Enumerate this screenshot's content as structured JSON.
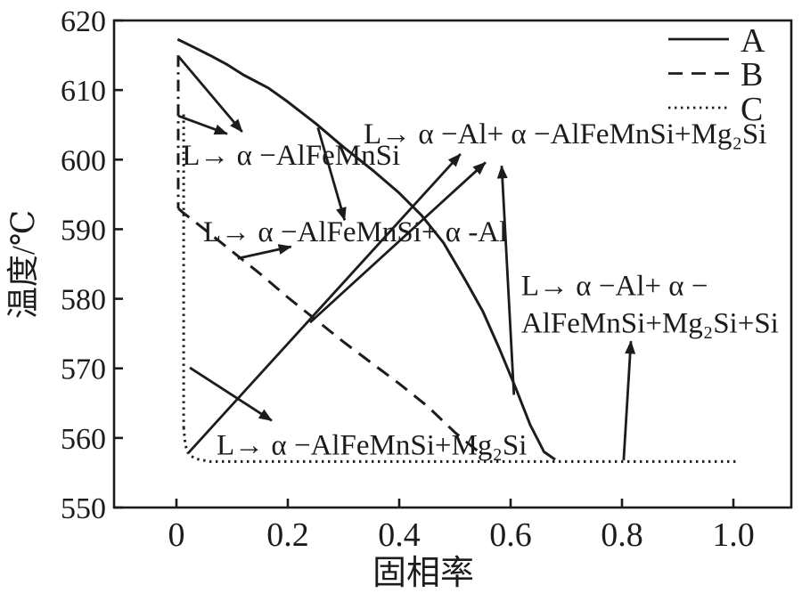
{
  "chart_data": {
    "type": "line",
    "title": "",
    "xlabel": "固相率",
    "ylabel": "温度/℃",
    "xlim": [
      -0.112,
      1.104
    ],
    "ylim": [
      550,
      620
    ],
    "grid": false,
    "ink_color": "#1c1c1c",
    "background_color": "#ffffff",
    "xticks": [
      {
        "v": 0.0,
        "label": "0"
      },
      {
        "v": 0.2,
        "label": "0.2"
      },
      {
        "v": 0.4,
        "label": "0.4"
      },
      {
        "v": 0.6,
        "label": "0.6"
      },
      {
        "v": 0.8,
        "label": "0.8"
      },
      {
        "v": 1.0,
        "label": "1.0"
      }
    ],
    "yticks": [
      {
        "v": 550,
        "label": "550"
      },
      {
        "v": 560,
        "label": "560"
      },
      {
        "v": 570,
        "label": "570"
      },
      {
        "v": 580,
        "label": "580"
      },
      {
        "v": 590,
        "label": "590"
      },
      {
        "v": 600,
        "label": "600"
      },
      {
        "v": 610,
        "label": "610"
      },
      {
        "v": 620,
        "label": "620"
      }
    ],
    "legend": {
      "position": "top-right",
      "entries": [
        {
          "label": "A",
          "style": "solid"
        },
        {
          "label": "B",
          "style": "dashed"
        },
        {
          "label": "C",
          "style": "dotted"
        }
      ]
    },
    "series": [
      {
        "name": "A",
        "style": "solid",
        "segments": [
          {
            "points": [
              [
                0.002,
                617.3
              ],
              [
                0.03,
                616.2
              ],
              [
                0.06,
                615.0
              ],
              [
                0.09,
                613.7
              ],
              [
                0.12,
                612.2
              ],
              [
                0.165,
                610.3
              ],
              [
                0.2,
                608.3
              ],
              [
                0.25,
                605.2
              ],
              [
                0.3,
                601.8
              ],
              [
                0.355,
                598.3
              ],
              [
                0.4,
                595.2
              ],
              [
                0.44,
                592.0
              ],
              [
                0.48,
                588.0
              ],
              [
                0.52,
                582.5
              ],
              [
                0.55,
                578.2
              ],
              [
                0.58,
                572.8
              ],
              [
                0.61,
                567.0
              ],
              [
                0.635,
                561.9
              ],
              [
                0.66,
                558.0
              ],
              [
                0.68,
                556.9
              ]
            ]
          }
        ]
      },
      {
        "name": "B",
        "style": "dashed",
        "segments": [
          {
            "style": "dashdot",
            "points": [
              [
                0.0032,
                615.0
              ],
              [
                0.0032,
                593.0
              ]
            ]
          },
          {
            "points": [
              [
                0.0032,
                593.0
              ],
              [
                0.01,
                592.5
              ],
              [
                0.05,
                590.0
              ],
              [
                0.1,
                586.8
              ],
              [
                0.15,
                583.6
              ],
              [
                0.2,
                580.2
              ],
              [
                0.25,
                577.0
              ],
              [
                0.3,
                573.8
              ],
              [
                0.35,
                570.8
              ],
              [
                0.4,
                567.8
              ],
              [
                0.45,
                564.6
              ],
              [
                0.5,
                560.8
              ],
              [
                0.53,
                558.8
              ],
              [
                0.55,
                557.6
              ]
            ]
          }
        ]
      },
      {
        "name": "C",
        "style": "dotted",
        "segments": [
          {
            "points": [
              [
                0.013,
                606.5
              ],
              [
                0.013,
                561.5
              ]
            ]
          },
          {
            "points": [
              [
                0.013,
                561.5
              ],
              [
                0.016,
                559.0
              ],
              [
                0.022,
                557.6
              ],
              [
                0.035,
                557.0
              ],
              [
                0.06,
                556.6
              ],
              [
                1.005,
                556.6
              ]
            ]
          }
        ]
      }
    ],
    "annotations": [
      {
        "id": "reaction-alfemnsi",
        "x": 0.01,
        "y": 602.7,
        "lines": [
          "L→ α −AlFeMnSi"
        ]
      },
      {
        "id": "reaction-alfemnsi-al",
        "x": 0.048,
        "y": 591.7,
        "lines": [
          "L→ α −AlFeMnSi+ α -Al"
        ]
      },
      {
        "id": "reaction-al-alfemnsi-mg2si",
        "x": 0.336,
        "y": 605.8,
        "lines": [
          "L→ α −Al+ α −AlFeMnSi+Mg₂Si"
        ]
      },
      {
        "id": "reaction-al-alfemnsi-mg2si-si",
        "x": 0.619,
        "y": 584.0,
        "lines": [
          "L→ α −Al+ α −",
          "AlFeMnSi+Mg₂Si+Si"
        ]
      },
      {
        "id": "reaction-alfemnsi-mg2si",
        "x": 0.072,
        "y": 561.1,
        "lines": [
          "L→ α −AlFeMnSi+Mg₂Si"
        ]
      }
    ],
    "arrows": [
      {
        "id": "arrow-to-reaction1-from-B-start",
        "from": [
          0.003,
          614.9
        ],
        "to": [
          0.118,
          604.0
        ]
      },
      {
        "id": "arrow-to-reaction1-from-C-start",
        "from": [
          0.003,
          606.3
        ],
        "to": [
          0.091,
          603.7
        ]
      },
      {
        "id": "arrow-to-reaction2-from-A",
        "from": [
          0.254,
          604.6
        ],
        "to": [
          0.302,
          591.3
        ]
      },
      {
        "id": "arrow-to-reaction2-from-B",
        "from": [
          0.11,
          585.8
        ],
        "to": [
          0.206,
          587.5
        ]
      },
      {
        "id": "arrow-to-reaction5",
        "from": [
          0.024,
          570.1
        ],
        "to": [
          0.171,
          562.5
        ]
      },
      {
        "id": "arrow-to-reaction3-from-C",
        "from": [
          0.022,
          557.9
        ],
        "to": [
          0.51,
          600.8
        ]
      },
      {
        "id": "arrow-to-reaction3-from-B",
        "from": [
          0.24,
          576.6
        ],
        "to": [
          0.555,
          599.6
        ]
      },
      {
        "id": "arrow-to-reaction3-from-A",
        "from": [
          0.606,
          566.2
        ],
        "to": [
          0.584,
          599.1
        ]
      },
      {
        "id": "arrow-to-reaction4-from-eutectic",
        "from": [
          0.803,
          556.8
        ],
        "to": [
          0.816,
          573.9
        ]
      }
    ]
  }
}
